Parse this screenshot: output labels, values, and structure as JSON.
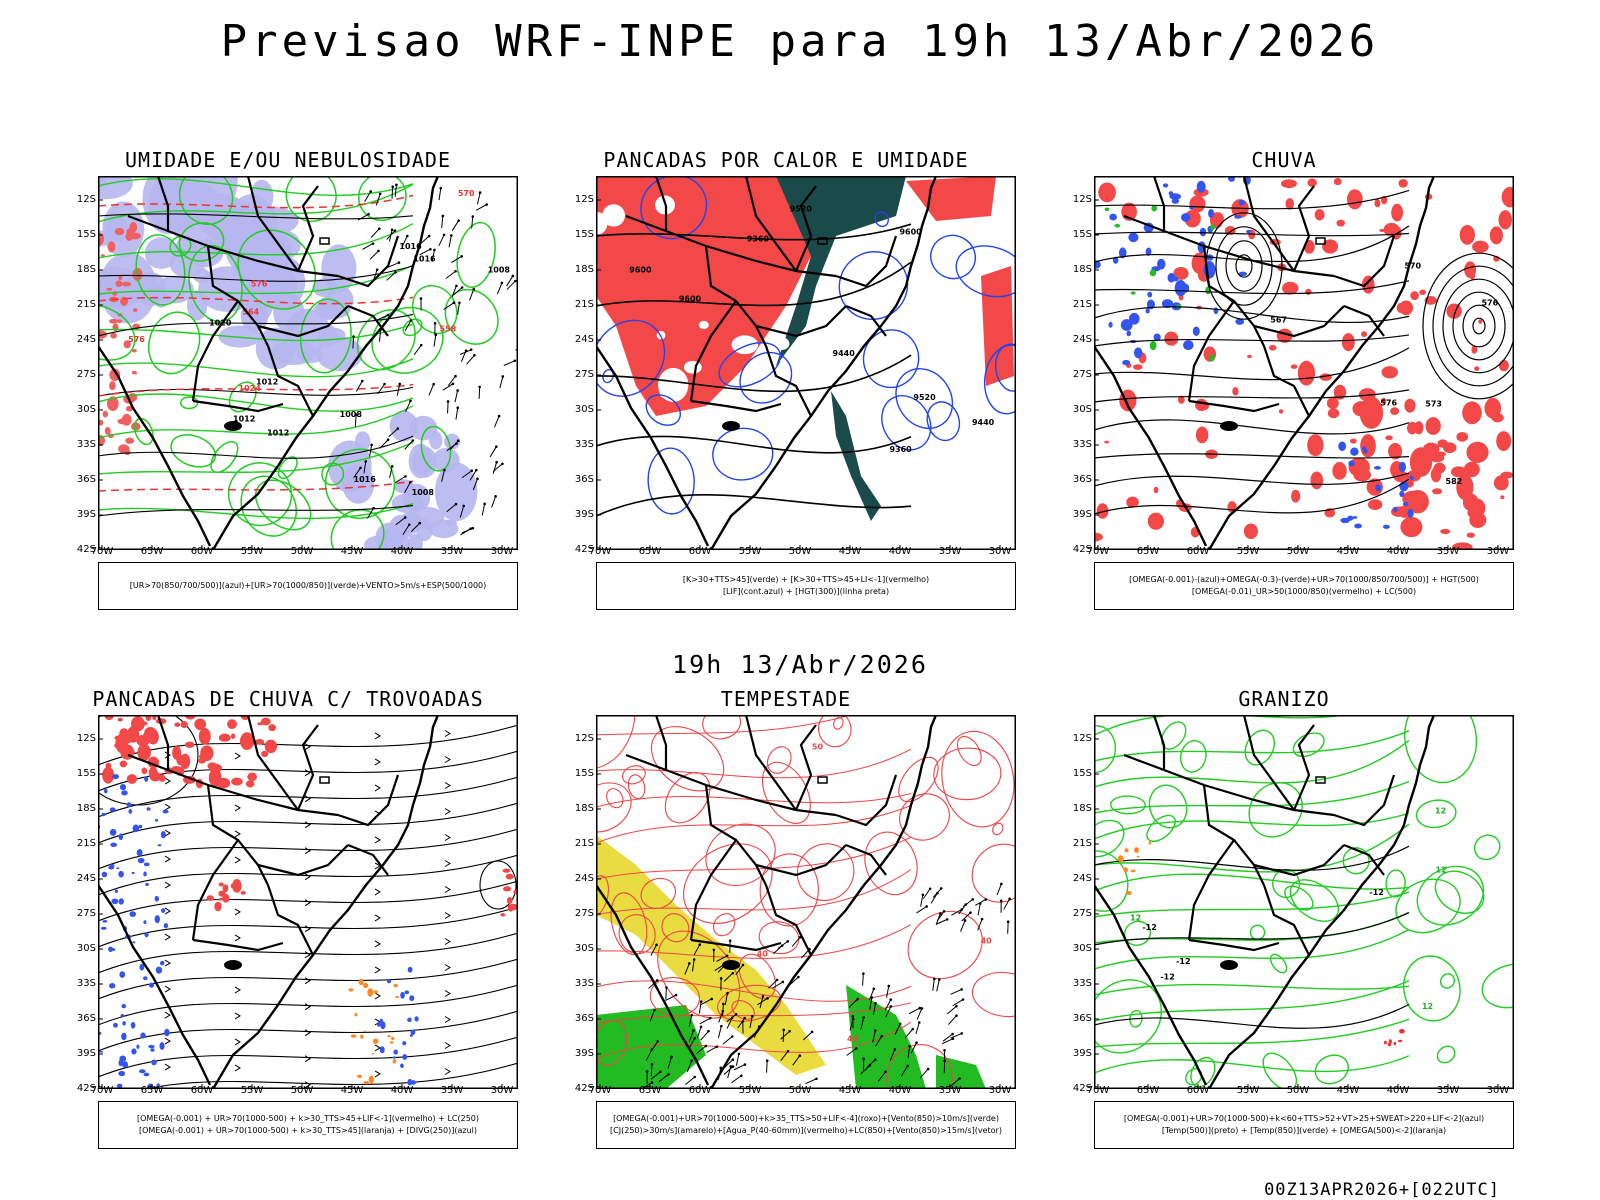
{
  "main_title": "Previsao WRF-INPE  para 19h 13/Abr/2026",
  "mid_title": "19h 13/Abr/2026",
  "footer": "00Z13APR2026+[022UTC]",
  "lat_labels": [
    "12S",
    "15S",
    "18S",
    "21S",
    "24S",
    "27S",
    "30S",
    "33S",
    "36S",
    "39S",
    "42S"
  ],
  "lon_labels": [
    "70W",
    "65W",
    "60W",
    "55W",
    "50W",
    "45W",
    "40W",
    "35W",
    "30W"
  ],
  "panels": [
    {
      "id": "umidade",
      "title": "UMIDADE E/OU NEBULOSIDADE",
      "legend": [
        "[UR>70(850/700/500)](azul)+[UR>70(1000/850)](verde)+VENTO>5m/s+ESP(500/1000)"
      ],
      "contour_labels": [
        "1008",
        "1008",
        "1008",
        "1012",
        "1012",
        "1012",
        "1016",
        "1016",
        "1016",
        "1020",
        "1024",
        "576",
        "576",
        "570",
        "564",
        "558"
      ]
    },
    {
      "id": "pancadas-calor",
      "title": "PANCADAS POR CALOR E UMIDADE",
      "legend": [
        "[K>30+TTS>45](verde) + [K>30+TTS>45+LI<-1](vermelho)",
        "[LIF](cont.azul) + [HGT(300)](linha preta)"
      ],
      "contour_labels": [
        "9600",
        "9600",
        "9600",
        "9520",
        "9440",
        "9440",
        "9360",
        "9360",
        "9520"
      ]
    },
    {
      "id": "chuva",
      "title": "CHUVA",
      "legend": [
        "[OMEGA(-0.001)-(azul)+OMEGA(-0.3)-(verde)+UR>70(1000/850/700/500)] + HGT(500)",
        "[OMEGA(-0.01)_UR>50(1000/850)(vermelho) + LC(500)"
      ],
      "contour_labels": [
        "576",
        "582",
        "576",
        "573",
        "570",
        "567"
      ]
    },
    {
      "id": "trovoadas",
      "title": "PANCADAS DE CHUVA C/ TROVOADAS",
      "legend": [
        "[OMEGA(-0.001) + UR>70(1000-500) + k>30_TTS>45+LIF<-1](vermelho) + LC(250)",
        "[OMEGA(-0.001) + UR>70(1000-500) + k>30_TTS>45](laranja) + [DIVG(250)](azul)"
      ],
      "contour_labels": []
    },
    {
      "id": "tempestade",
      "title": "TEMPESTADE",
      "legend": [
        "[OMEGA(-0.001)+UR>70(1000-500)+k>35_TTS>50+LIF<-4](roxo)+[Vento(850)>10m/s](verde)",
        "[CJ(250)>30m/s](amarelo)+[Agua_P(40-60mm)](vermelho)+LC(850)+[Vento(850)>15m/s](vetor)"
      ],
      "contour_labels": [
        "40",
        "40",
        "40",
        "50"
      ]
    },
    {
      "id": "granizo",
      "title": "GRANIZO",
      "legend": [
        "[OMEGA(-0.001)+UR>70(1000-500)+k<60+TTS>52+VT>25+SWEAT>220+LIF<-2](azul)",
        "[Temp(500)](preto) + [Temp(850)](verde) + [OMEGA(500)<-2](laranja)"
      ],
      "contour_labels": [
        "-12",
        "-12",
        "-12",
        "-12",
        "12",
        "12",
        "12",
        "12"
      ]
    }
  ]
}
